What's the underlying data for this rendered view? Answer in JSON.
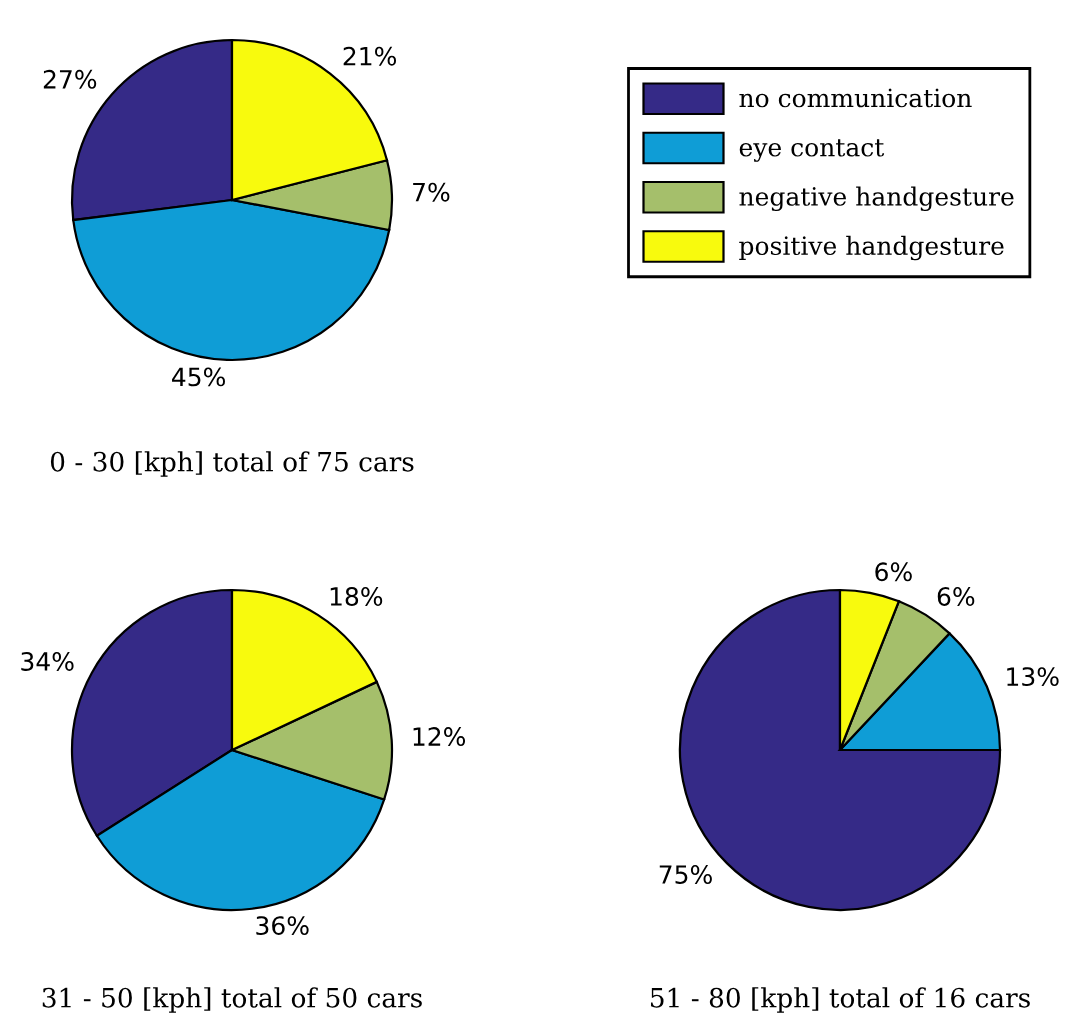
{
  "chart_data": [
    {
      "type": "pie",
      "xlabel": "0 - 30 [kph] total of 75 cars",
      "categories": [
        "no communication",
        "eye contact",
        "negative handgesture",
        "positive handgesture"
      ],
      "values": [
        27,
        45,
        7,
        21
      ],
      "value_labels": [
        "27%",
        "45%",
        "7%",
        "21%"
      ],
      "colors": [
        "#352a87",
        "#0f9dd6",
        "#a5bf6b",
        "#f8fa0d"
      ],
      "legend": "right"
    },
    {
      "type": "pie",
      "xlabel": "31 - 50 [kph] total of 50 cars",
      "values": [
        34,
        36,
        12,
        18
      ],
      "value_labels": [
        "34%",
        "36%",
        "12%",
        "18%"
      ],
      "colors": [
        "#352a87",
        "#0f9dd6",
        "#a5bf6b",
        "#f8fa0d"
      ]
    },
    {
      "type": "pie",
      "xlabel": "51 - 80 [kph] total of 16 cars",
      "values": [
        75,
        13,
        6,
        6
      ],
      "value_labels": [
        "75%",
        "13%",
        "6%",
        "6%"
      ],
      "colors": [
        "#352a87",
        "#0f9dd6",
        "#a5bf6b",
        "#f8fa0d"
      ]
    }
  ]
}
